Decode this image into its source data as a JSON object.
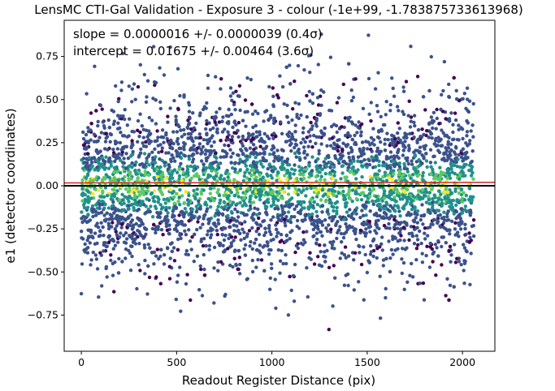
{
  "chart_data": {
    "type": "scatter",
    "title": "LensMC CTI-Gal Validation - Exposure 3 - colour (-1e+99, -1.783875733613968)",
    "xlabel": "Readout Register Distance (pix)",
    "ylabel": "e1 (detector coordinates)",
    "xlim": [
      -90,
      2170
    ],
    "ylim": [
      -0.96,
      0.96
    ],
    "xticks": [
      0,
      500,
      1000,
      1500,
      2000
    ],
    "xtick_labels": [
      "0",
      "500",
      "1000",
      "1500",
      "2000"
    ],
    "yticks": [
      -0.75,
      -0.5,
      -0.25,
      0.0,
      0.25,
      0.5,
      0.75
    ],
    "ytick_labels": [
      "−0.75",
      "−0.50",
      "−0.25",
      "0.00",
      "0.25",
      "0.50",
      "0.75"
    ],
    "annotations": [
      "slope = 0.0000016 +/- 0.0000039 (0.4σ)",
      "intercept = 0.01675 +/- 0.00464 (3.6σ)"
    ],
    "fit_line": {
      "slope": 1.6e-06,
      "intercept": 0.01675,
      "color": "#d62728"
    },
    "reference_line": {
      "y": 0.0,
      "color": "#000000"
    },
    "points_summary": {
      "x_range": [
        0,
        2060
      ],
      "y_center": 0.0,
      "y_spread": 0.25,
      "colormap": "viridis",
      "density_colored": true
    },
    "grid": false,
    "legend": "none"
  },
  "colors": {
    "viridis": [
      "#440154",
      "#3b528b",
      "#21918c",
      "#5ec962",
      "#fde725"
    ],
    "fit": "#d62728",
    "zero": "#000000"
  }
}
